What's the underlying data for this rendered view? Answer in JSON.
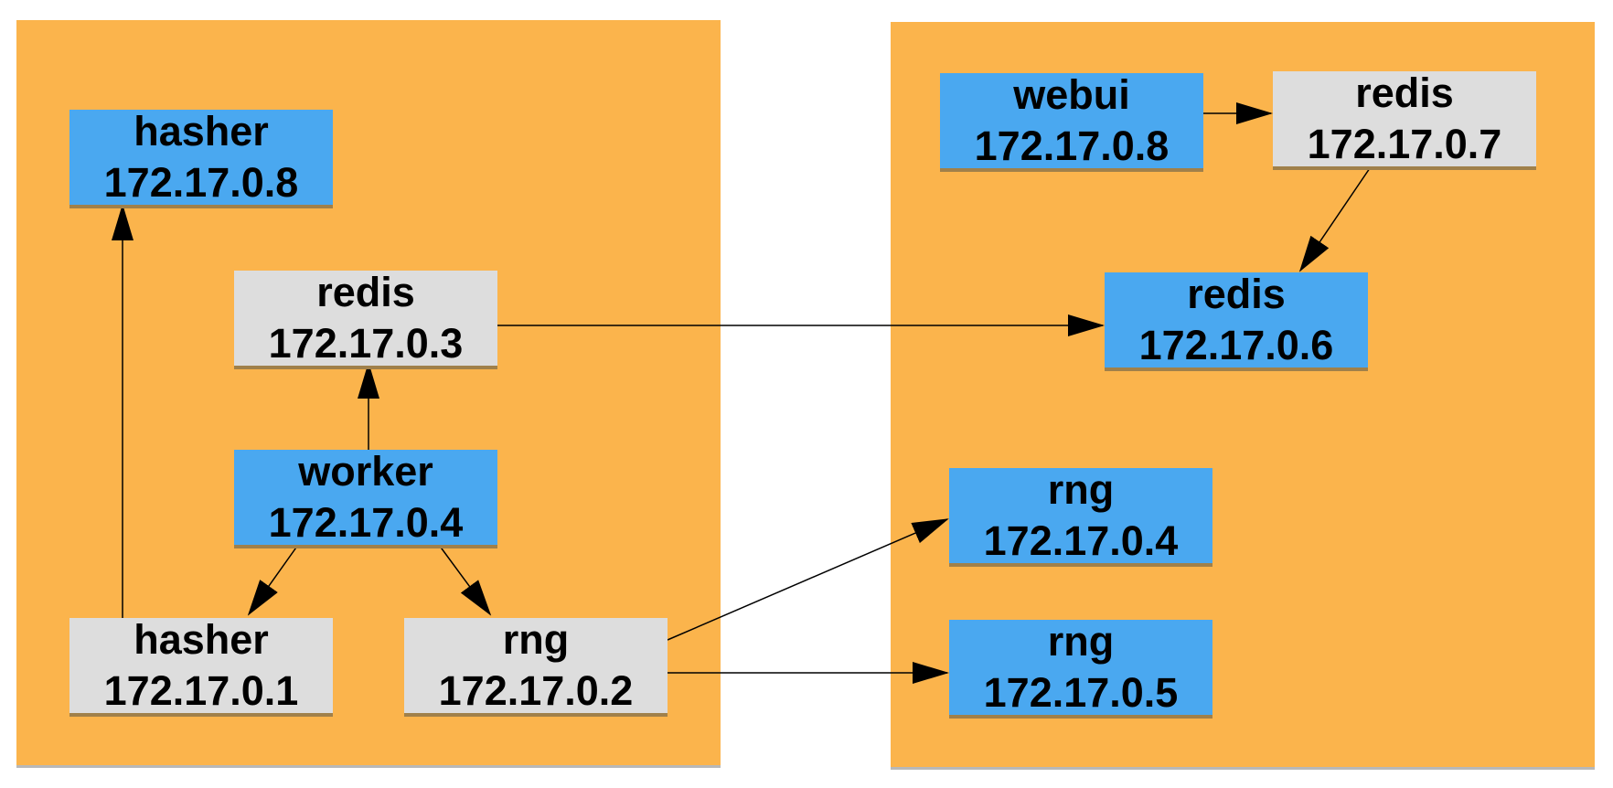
{
  "nodes": {
    "hasher_8": {
      "name": "hasher",
      "ip": "172.17.0.8"
    },
    "redis_3": {
      "name": "redis",
      "ip": "172.17.0.3"
    },
    "worker_4": {
      "name": "worker",
      "ip": "172.17.0.4"
    },
    "hasher_1": {
      "name": "hasher",
      "ip": "172.17.0.1"
    },
    "rng_2": {
      "name": "rng",
      "ip": "172.17.0.2"
    },
    "webui_8": {
      "name": "webui",
      "ip": "172.17.0.8"
    },
    "redis_7": {
      "name": "redis",
      "ip": "172.17.0.7"
    },
    "redis_6": {
      "name": "redis",
      "ip": "172.17.0.6"
    },
    "rng_4": {
      "name": "rng",
      "ip": "172.17.0.4"
    },
    "rng_5": {
      "name": "rng",
      "ip": "172.17.0.5"
    }
  },
  "colors": {
    "host_background": "#fbb44c",
    "service_node": "#4aa8f0",
    "peer_node": "#dddddd"
  }
}
